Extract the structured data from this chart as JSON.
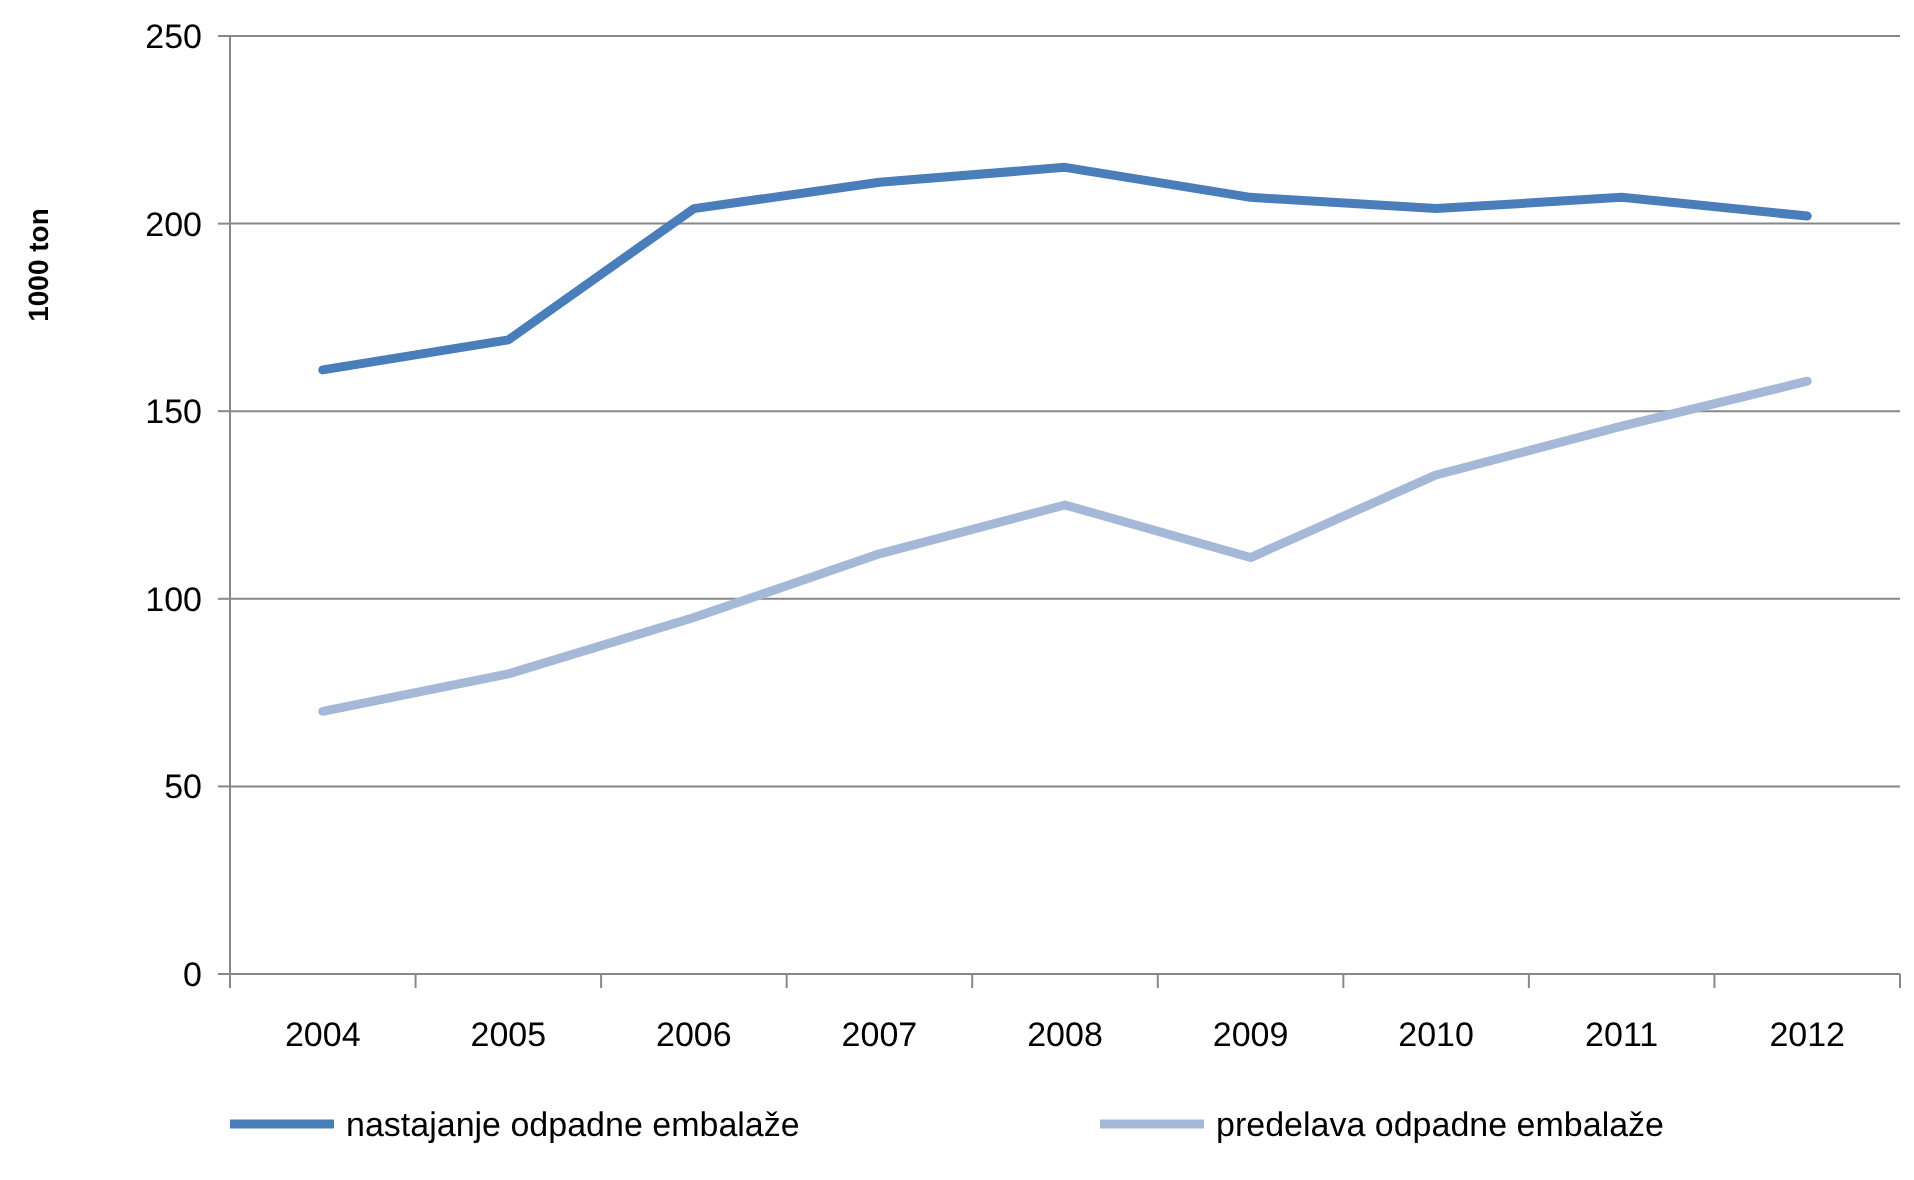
{
  "chart_data": {
    "type": "line",
    "ylabel": "1000 ton",
    "categories": [
      "2004",
      "2005",
      "2006",
      "2007",
      "2008",
      "2009",
      "2010",
      "2011",
      "2012"
    ],
    "series": [
      {
        "name": "nastajanje odpadne embalaže",
        "color": "#4a7ebb",
        "values": [
          161,
          169,
          204,
          211,
          215,
          207,
          204,
          207,
          202
        ]
      },
      {
        "name": "predelava odpadne embalaže",
        "color": "#a5b8d7",
        "values": [
          70,
          80,
          95,
          112,
          125,
          111,
          133,
          146,
          158
        ]
      }
    ],
    "ylim": [
      0,
      250
    ],
    "yticks": [
      0,
      50,
      100,
      150,
      200,
      250
    ],
    "grid": "y",
    "legend": "bottom",
    "marker": "none",
    "line_style": "solid"
  }
}
